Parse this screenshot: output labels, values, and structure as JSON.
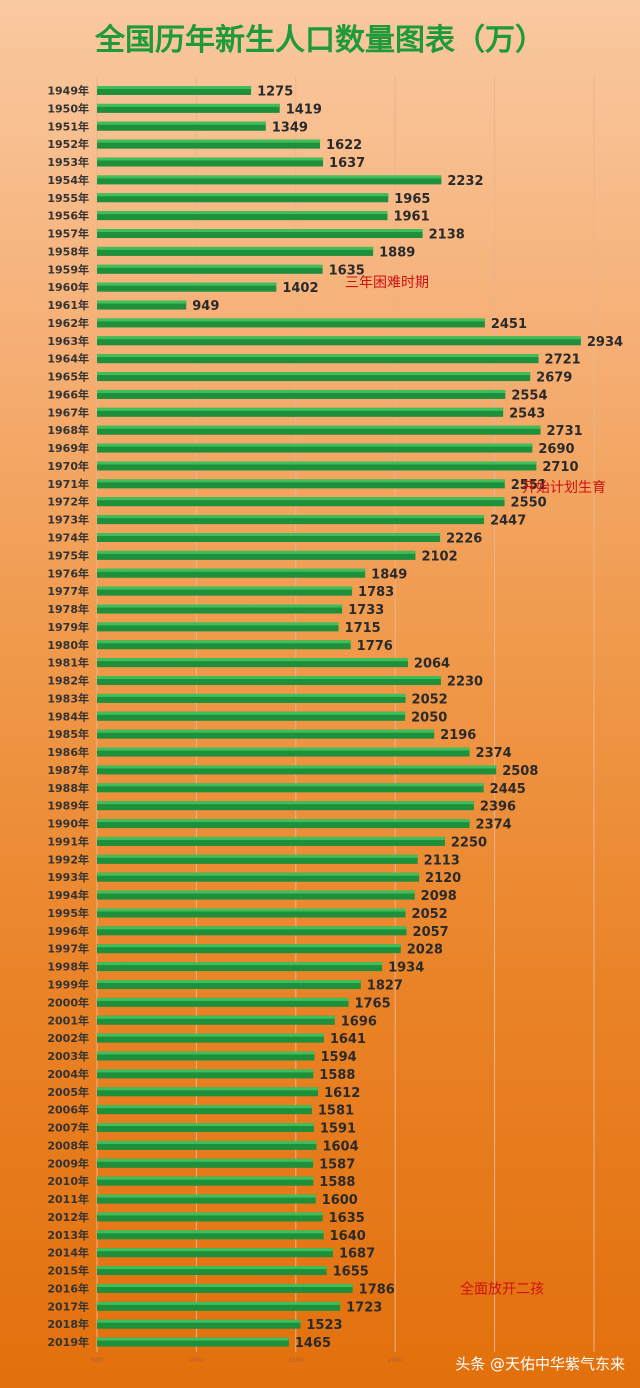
{
  "chart_data": {
    "type": "bar",
    "orientation": "horizontal",
    "title": "全国历年新生人口数量图表（万）",
    "categories": [
      "1949年",
      "1950年",
      "1951年",
      "1952年",
      "1953年",
      "1954年",
      "1955年",
      "1956年",
      "1957年",
      "1958年",
      "1959年",
      "1960年",
      "1961年",
      "1962年",
      "1963年",
      "1964年",
      "1965年",
      "1966年",
      "1967年",
      "1968年",
      "1969年",
      "1970年",
      "1971年",
      "1972年",
      "1973年",
      "1974年",
      "1975年",
      "1976年",
      "1977年",
      "1978年",
      "1979年",
      "1980年",
      "1981年",
      "1982年",
      "1983年",
      "1984年",
      "1985年",
      "1986年",
      "1987年",
      "1988年",
      "1989年",
      "1990年",
      "1991年",
      "1992年",
      "1993年",
      "1994年",
      "1995年",
      "1996年",
      "1997年",
      "1998年",
      "1999年",
      "2000年",
      "2001年",
      "2002年",
      "2003年",
      "2004年",
      "2005年",
      "2006年",
      "2007年",
      "2008年",
      "2009年",
      "2010年",
      "2011年",
      "2012年",
      "2013年",
      "2014年",
      "2015年",
      "2016年",
      "2017年",
      "2018年",
      "2019年"
    ],
    "values": [
      1275,
      1419,
      1349,
      1622,
      1637,
      2232,
      1965,
      1961,
      2138,
      1889,
      1635,
      1402,
      949,
      2451,
      2934,
      2721,
      2679,
      2554,
      2543,
      2731,
      2690,
      2710,
      2551,
      2550,
      2447,
      2226,
      2102,
      1849,
      1783,
      1733,
      1715,
      1776,
      2064,
      2230,
      2052,
      2050,
      2196,
      2374,
      2508,
      2445,
      2396,
      2374,
      2250,
      2113,
      2120,
      2098,
      2052,
      2057,
      2028,
      1934,
      1827,
      1765,
      1696,
      1641,
      1594,
      1588,
      1612,
      1581,
      1591,
      1604,
      1587,
      1588,
      1600,
      1635,
      1640,
      1687,
      1655,
      1786,
      1723,
      1523,
      1465
    ],
    "xlim": [
      500,
      3000
    ],
    "xticks": [
      500,
      1000,
      1500,
      2000,
      2500,
      3000
    ],
    "xtick_labels": [
      "500",
      "1000",
      "1500",
      "2000",
      "",
      ""
    ],
    "grid": true,
    "bar_color": "#1e8f3a",
    "annotations": [
      {
        "text": "三年困难时期",
        "near_category": "1960年"
      },
      {
        "text": "开始计划生育",
        "near_category": "1971年"
      },
      {
        "text": "全面放开二孩",
        "near_category": "2016年"
      }
    ]
  },
  "watermark": {
    "text": "头条 @天佑中华紫气东来"
  }
}
